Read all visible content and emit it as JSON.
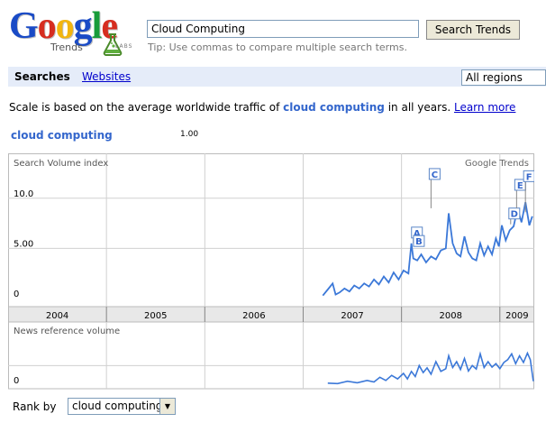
{
  "logo": {
    "letters": [
      "G",
      "o",
      "o",
      "g",
      "l",
      "e"
    ],
    "letter_colors": [
      "#1a4bc6",
      "#d62d20",
      "#f2b50f",
      "#1a4bc6",
      "#179c3a",
      "#d62d20"
    ],
    "subtitle": "Trends",
    "labs": "LABS"
  },
  "search": {
    "query": "Cloud Computing",
    "button_label": "Search Trends",
    "tip": "Tip: Use commas to compare multiple search terms."
  },
  "nav": {
    "searches_label": "Searches",
    "websites_label": "Websites",
    "region_value": "All regions"
  },
  "scale_note": {
    "prefix": "Scale is based on the average worldwide traffic of ",
    "term": "cloud computing",
    "suffix": " in all years. ",
    "link": "Learn more"
  },
  "legend": {
    "term": "cloud computing",
    "value": "1.00"
  },
  "chart_data": {
    "type": "line",
    "title": "Search Volume index",
    "watermark": "Google Trends",
    "color": "#3b78d8",
    "ylim": [
      0,
      12.5
    ],
    "y_ticks": [
      "10.0",
      "5.00",
      "0"
    ],
    "y_tick_values": [
      10,
      5,
      0
    ],
    "years": [
      "2004",
      "2005",
      "2006",
      "2007",
      "2008",
      "2009"
    ],
    "xlim": [
      2004,
      2009.35
    ],
    "series": [
      {
        "x": [
          2007.2,
          2007.25,
          2007.3,
          2007.33,
          2007.37,
          2007.42,
          2007.47,
          2007.52,
          2007.57,
          2007.62,
          2007.67,
          2007.72,
          2007.77,
          2007.82,
          2007.87,
          2007.92,
          2007.97,
          2008.02,
          2008.07,
          2008.1,
          2008.12,
          2008.16,
          2008.2,
          2008.25,
          2008.3,
          2008.35,
          2008.4,
          2008.45,
          2008.48,
          2008.52,
          2008.56,
          2008.6,
          2008.64,
          2008.68,
          2008.72,
          2008.76,
          2008.8,
          2008.84,
          2008.88,
          2008.92,
          2008.96,
          2008.99,
          2009.02,
          2009.06,
          2009.1,
          2009.14,
          2009.18,
          2009.22,
          2009.26,
          2009.3,
          2009.33
        ],
        "y": [
          0.3,
          0.9,
          1.5,
          0.4,
          0.6,
          1.0,
          0.7,
          1.3,
          1.0,
          1.5,
          1.2,
          1.9,
          1.4,
          2.2,
          1.6,
          2.6,
          1.9,
          2.8,
          2.5,
          5.5,
          4.0,
          3.8,
          4.4,
          3.6,
          4.2,
          3.9,
          4.8,
          5.0,
          8.5,
          5.5,
          4.5,
          4.2,
          6.2,
          4.6,
          4.0,
          3.8,
          5.5,
          4.3,
          5.2,
          4.4,
          6.0,
          5.2,
          7.3,
          5.8,
          6.8,
          7.2,
          9.0,
          7.6,
          9.6,
          7.3,
          8.2
        ]
      }
    ],
    "annotations": [
      {
        "label": "A",
        "x": 2008.12,
        "y": 5.5
      },
      {
        "label": "B",
        "x": 2008.14,
        "y": 5.2
      },
      {
        "label": "C",
        "x": 2008.3,
        "y": 9.0
      },
      {
        "label": "D",
        "x": 2009.11,
        "y": 7.4
      },
      {
        "label": "E",
        "x": 2009.17,
        "y": 9.0
      },
      {
        "label": "F",
        "x": 2009.26,
        "y": 8.6
      }
    ],
    "news": {
      "title": "News reference volume",
      "y_tick": "0",
      "ylim": [
        0,
        12
      ],
      "x": [
        2007.25,
        2007.35,
        2007.45,
        2007.55,
        2007.65,
        2007.72,
        2007.78,
        2007.84,
        2007.9,
        2007.96,
        2008.02,
        2008.06,
        2008.1,
        2008.14,
        2008.18,
        2008.22,
        2008.26,
        2008.3,
        2008.35,
        2008.4,
        2008.45,
        2008.48,
        2008.52,
        2008.56,
        2008.6,
        2008.64,
        2008.68,
        2008.72,
        2008.76,
        2008.8,
        2008.84,
        2008.88,
        2008.92,
        2008.96,
        2009.0,
        2009.04,
        2009.08,
        2009.12,
        2009.16,
        2009.2,
        2009.24,
        2009.28,
        2009.31,
        2009.34
      ],
      "y": [
        0.5,
        0.4,
        1.0,
        0.6,
        1.2,
        0.8,
        2.0,
        1.2,
        2.5,
        1.6,
        3.0,
        1.6,
        3.5,
        2.2,
        5.0,
        3.2,
        4.4,
        2.8,
        6.0,
        3.5,
        4.2,
        7.5,
        4.5,
        6.0,
        4.0,
        6.8,
        3.6,
        5.0,
        4.1,
        8.0,
        4.5,
        6.0,
        4.6,
        5.5,
        4.2,
        5.8,
        6.5,
        8.0,
        5.5,
        7.5,
        5.8,
        8.2,
        6.5,
        1.0
      ]
    }
  },
  "rank": {
    "label": "Rank by",
    "value": "cloud computing"
  }
}
